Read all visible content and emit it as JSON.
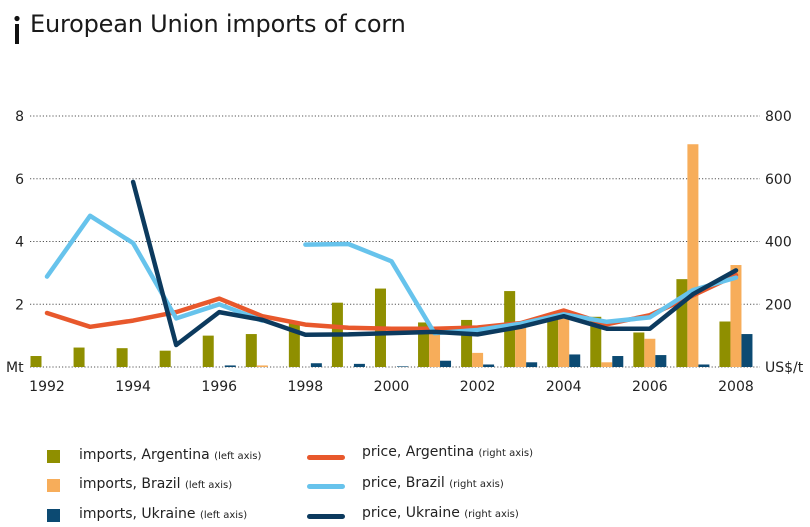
{
  "title": "European Union imports of corn",
  "colors": {
    "argentina_bar": "#8f8f00",
    "brazil_bar": "#f7ad5a",
    "ukraine_bar": "#0c4a72",
    "argentina_line": "#e8582c",
    "brazil_line": "#67c3ec",
    "ukraine_line": "#0c3a5e"
  },
  "chart_data": {
    "type": "bar",
    "title": "European Union imports of corn",
    "x": [
      1992,
      1993,
      1994,
      1995,
      1996,
      1997,
      1998,
      1999,
      2000,
      2001,
      2002,
      2003,
      2004,
      2005,
      2006,
      2007,
      2008
    ],
    "x_tick_labels": [
      "1992",
      "1994",
      "1996",
      "1998",
      "2000",
      "2002",
      "2004",
      "2006",
      "2008"
    ],
    "ylabel_left": "Mt",
    "ylabel_right": "US$/t",
    "ylim_left": [
      0,
      8
    ],
    "ylim_right": [
      0,
      800
    ],
    "yticks_left": [
      "2",
      "4",
      "6",
      "8"
    ],
    "yticks_right": [
      "200",
      "400",
      "600",
      "800"
    ],
    "grid": "dotted horizontal",
    "bar_series": [
      {
        "name": "imports, Argentina",
        "axis_note": "(left axis)",
        "values": [
          0.35,
          0.62,
          0.6,
          0.52,
          1.0,
          1.05,
          1.45,
          2.05,
          2.5,
          1.42,
          1.5,
          2.42,
          1.6,
          1.6,
          1.1,
          2.8,
          1.45
        ]
      },
      {
        "name": "imports, Brazil",
        "axis_note": "(left axis)",
        "values": [
          0,
          0,
          0,
          0,
          0,
          0.05,
          0,
          0,
          0,
          1.05,
          0.45,
          1.25,
          1.6,
          0.15,
          0.9,
          7.1,
          3.25
        ]
      },
      {
        "name": "imports, Ukraine",
        "axis_note": "(left axis)",
        "values": [
          0,
          0,
          0,
          0,
          0.05,
          0,
          0.12,
          0.1,
          0.02,
          0.2,
          0.08,
          0.15,
          0.4,
          0.35,
          0.38,
          0.08,
          1.05
        ]
      }
    ],
    "line_series": [
      {
        "name": "price, Argentina",
        "axis_note": "(right axis)",
        "values": [
          172,
          128,
          148,
          175,
          218,
          162,
          135,
          125,
          122,
          122,
          126,
          140,
          180,
          136,
          165,
          228,
          293
        ]
      },
      {
        "name": "price, Brazil",
        "axis_note": "(right axis)",
        "values": [
          288,
          482,
          395,
          155,
          200,
          148,
          null,
          390,
          392,
          337,
          108,
          118,
          138,
          168,
          144,
          158,
          245,
          285
        ],
        "x": [
          1992,
          1993,
          1994,
          1995,
          1996,
          1997,
          1997.5,
          1998,
          1999,
          2000,
          2001,
          2002,
          2003,
          2004,
          2005,
          2006,
          2007,
          2008
        ]
      },
      {
        "name": "price, Ukraine",
        "axis_note": "(right axis)",
        "values": [
          590,
          70,
          175,
          150,
          103,
          104,
          108,
          112,
          104,
          128,
          162,
          122,
          122,
          232,
          308
        ],
        "x": [
          1994,
          1995,
          1996,
          1997,
          1998,
          1999,
          2000,
          2001,
          2002,
          2003,
          2004,
          2005,
          2006,
          2007,
          2008
        ]
      }
    ]
  },
  "legend": {
    "items": [
      {
        "label": "imports, Argentina",
        "note": "(left axis)"
      },
      {
        "label": "imports, Brazil",
        "note": "(left axis)"
      },
      {
        "label": "imports, Ukraine",
        "note": "(left axis)"
      },
      {
        "label": "price, Argentina",
        "note": "(right axis)"
      },
      {
        "label": "price, Brazil",
        "note": "(right axis)"
      },
      {
        "label": "price, Ukraine",
        "note": "(right axis)"
      }
    ]
  }
}
